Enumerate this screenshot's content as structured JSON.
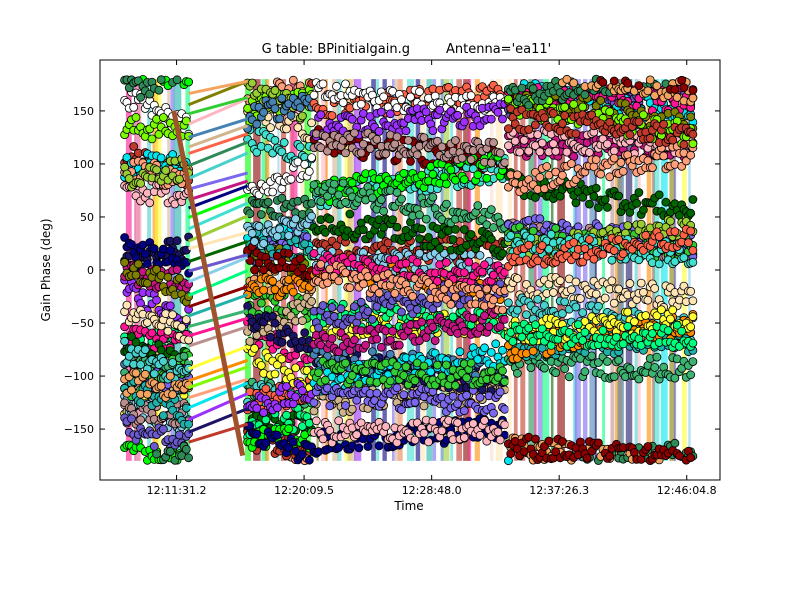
{
  "chart_data": {
    "type": "scatter",
    "title": "G table: BPinitialgain.g",
    "title_antenna": "Antenna='ea11'",
    "xlabel": "Time",
    "ylabel": "Gain Phase (deg)",
    "x_time_range": [
      "12:06:20",
      "12:48:20"
    ],
    "ylim": [
      -198,
      198
    ],
    "yticks": [
      150,
      100,
      50,
      0,
      -50,
      -100,
      -150
    ],
    "ytick_labels": [
      "150",
      "100",
      "50",
      "0",
      "−50",
      "−100",
      "−150"
    ],
    "xticks": [
      "12:11:31.2",
      "12:20:09.5",
      "12:28:48.0",
      "12:37:26.3",
      "12:46:04.8"
    ],
    "scans": [
      {
        "start": "12:08:00",
        "end": "12:12:20"
      },
      {
        "start": "12:16:20",
        "end": "12:20:40"
      },
      {
        "start": "12:20:50",
        "end": "12:33:45"
      },
      {
        "start": "12:34:00",
        "end": "12:46:30"
      }
    ],
    "grid": false,
    "series_colors": [
      "#c0392b",
      "#1b1464",
      "#9b30ff",
      "#00e5ee",
      "#ffa07a",
      "#7cfc00",
      "#ff8c00",
      "#ffff33",
      "#ffffff",
      "#bc8f8f",
      "#ff1493",
      "#3cb371",
      "#20b2aa",
      "#8b0000",
      "#00ff7f",
      "#87ceeb",
      "#6a5acd",
      "#006400",
      "#ffe4b5",
      "#9acd32",
      "#40e0d0",
      "#00ff00",
      "#000080",
      "#c71585",
      "#7b68ee",
      "#48d1cc",
      "#2e8b57",
      "#ff6347",
      "#d2b48c",
      "#4682b4",
      "#ffb6c1",
      "#32cd32",
      "#808000",
      "#f4a460"
    ]
  }
}
